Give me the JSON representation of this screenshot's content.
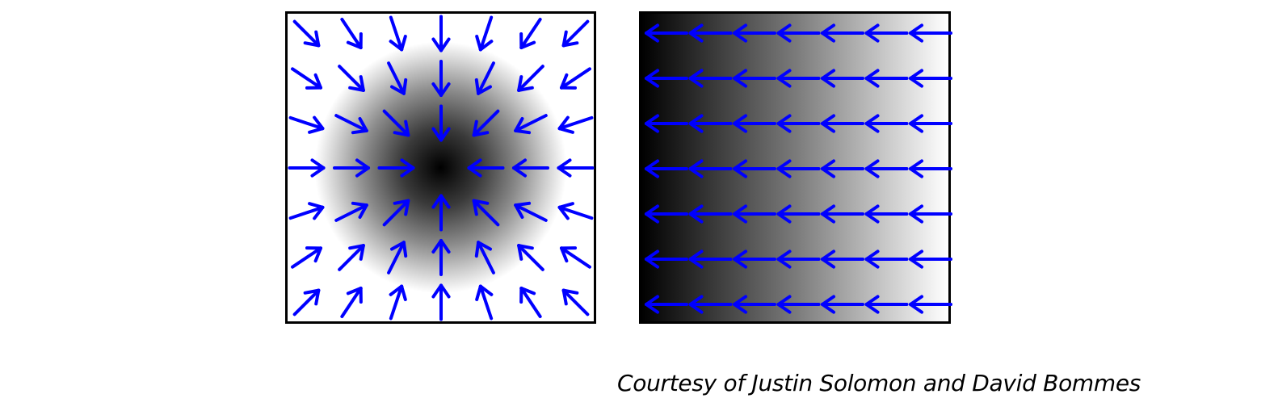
{
  "caption": {
    "credit": "Courtesy of Justin Solomon and David Bommes"
  },
  "colors": {
    "arrow": "#0000ff",
    "border": "#000000"
  },
  "left_panel": {
    "field": "radial-inward",
    "grid": [
      7,
      7
    ]
  },
  "right_panel": {
    "field": "uniform-left",
    "grid": [
      7,
      7
    ]
  }
}
